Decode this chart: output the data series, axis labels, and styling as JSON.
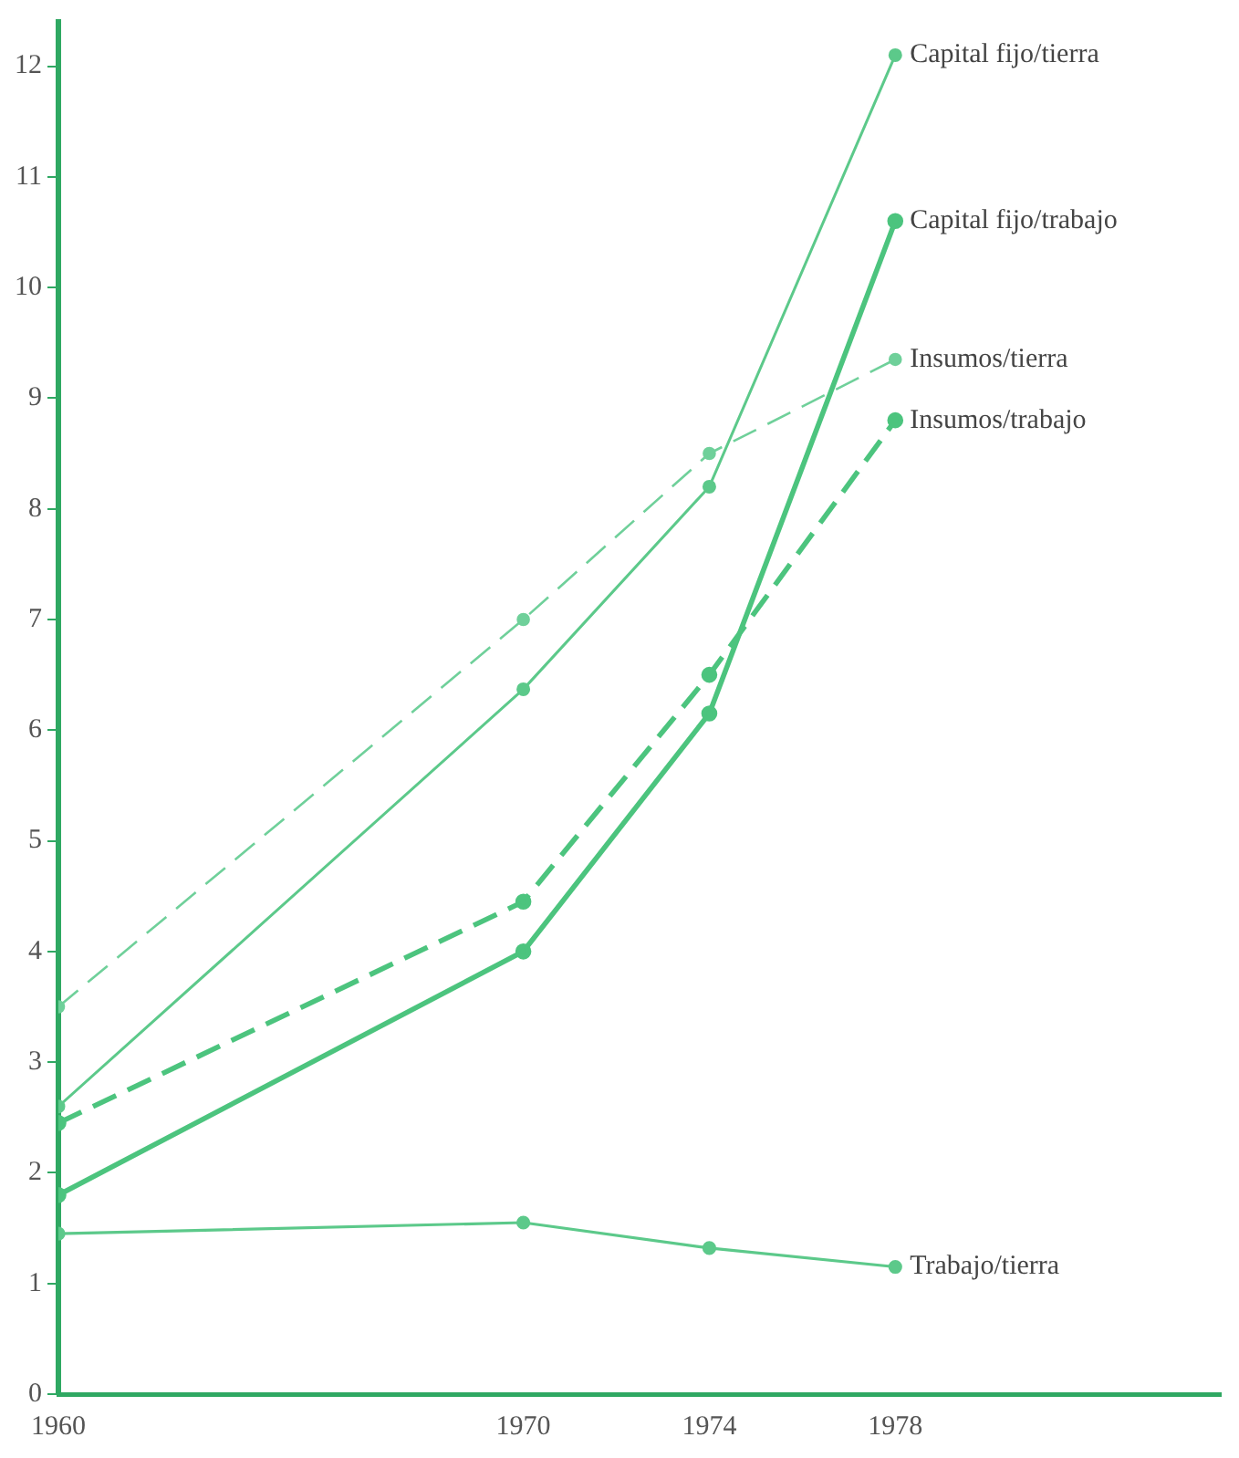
{
  "chart_data": {
    "type": "line",
    "x": [
      1960,
      1970,
      1974,
      1978
    ],
    "xlim": [
      1960,
      1985
    ],
    "xticks": [
      1960,
      1970,
      1974,
      1978
    ],
    "ylim": [
      0,
      12.4
    ],
    "yticks": [
      0,
      1,
      2,
      3,
      4,
      5,
      6,
      7,
      8,
      9,
      10,
      11,
      12
    ],
    "grid": false,
    "legend": false,
    "marker": "circle",
    "series": [
      {
        "name": "Capital fijo/tierra",
        "color": "#5cc98a",
        "line_style": "solid",
        "values": [
          2.6,
          6.37,
          8.2,
          12.1
        ]
      },
      {
        "name": "Capital fijo/trabajo",
        "color": "#4cc47e",
        "line_style": "solid",
        "values": [
          1.8,
          4.0,
          6.15,
          10.6
        ]
      },
      {
        "name": "Insumos/tierra",
        "color": "#6fd09a",
        "line_style": "dashed",
        "values": [
          3.5,
          7.0,
          8.5,
          9.35
        ]
      },
      {
        "name": "Insumos/trabajo",
        "color": "#4cc47e",
        "line_style": "dashed",
        "values": [
          2.45,
          4.45,
          6.5,
          8.8
        ]
      },
      {
        "name": "Trabajo/tierra",
        "color": "#5cc98a",
        "line_style": "solid",
        "values": [
          1.45,
          1.55,
          1.32,
          1.15
        ]
      }
    ]
  }
}
